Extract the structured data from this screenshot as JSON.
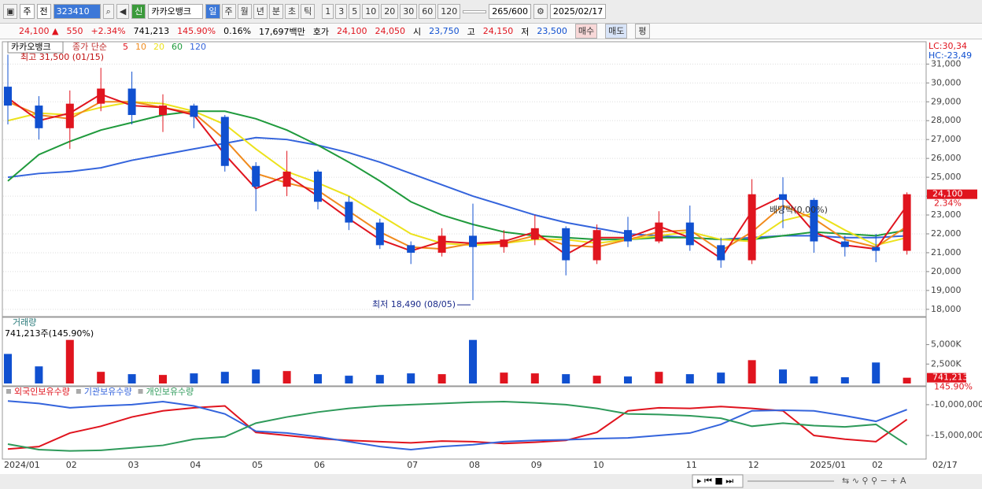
{
  "toolbar": {
    "market": "주",
    "type": "전",
    "code": "323410",
    "name": "카카오뱅크",
    "periods": [
      "일",
      "주",
      "월",
      "년",
      "분",
      "초",
      "틱"
    ],
    "intervals": [
      "1",
      "3",
      "5",
      "10",
      "20",
      "30",
      "60",
      "120"
    ],
    "count": "265",
    "max": "/600",
    "date": "2025/02/17"
  },
  "infobar": {
    "price": "24,100 ▲",
    "change": "550",
    "change_pct": "+2.34%",
    "volume": "741,213",
    "volume_pct": "145.90%",
    "turnover": "0.16%",
    "amount": "17,697백만",
    "quote_label": "호가",
    "ask": "24,100",
    "bid": "24,050",
    "open_label": "시",
    "open": "23,750",
    "high_label": "고",
    "high": "24,150",
    "low_label": "저",
    "low": "23,500",
    "buy": "매수",
    "sell": "매도",
    "avg": "평"
  },
  "chart_data": [
    {
      "type": "candlestick",
      "title": "카카오뱅크",
      "legend_label": "종가 단순",
      "categories": [
        "2024/01",
        null,
        "02",
        null,
        "03",
        null,
        "04",
        null,
        "05",
        null,
        "06",
        null,
        null,
        "07",
        null,
        "08",
        null,
        "09",
        null,
        "10",
        null,
        null,
        "11",
        null,
        "12",
        null,
        "2025/01",
        null,
        "02",
        null
      ],
      "end_label": "02/17",
      "open": [
        29800,
        28800,
        27600,
        28900,
        29700,
        28300,
        28800,
        28200,
        25600,
        24500,
        25300,
        23700,
        22600,
        21400,
        21000,
        21900,
        21300,
        21700,
        22300,
        20600,
        22200,
        21600,
        22600,
        21400,
        20600,
        24100,
        23800,
        21600,
        21300,
        21100
      ],
      "high": [
        31500,
        29300,
        29600,
        30800,
        30600,
        29400,
        28900,
        28300,
        25800,
        26400,
        25400,
        24000,
        22800,
        21600,
        22300,
        23600,
        22200,
        23000,
        22400,
        22500,
        22900,
        23200,
        23500,
        21800,
        24900,
        25000,
        23900,
        21900,
        22000,
        24200
      ],
      "low": [
        27800,
        27000,
        26500,
        28500,
        27800,
        27400,
        27600,
        25300,
        23200,
        24000,
        23300,
        22200,
        21200,
        20400,
        20800,
        18490,
        21000,
        21400,
        19800,
        20400,
        21300,
        21500,
        21100,
        20200,
        20400,
        22300,
        21000,
        20800,
        20500,
        20900
      ],
      "close": [
        28800,
        27600,
        28900,
        29700,
        28300,
        28800,
        28200,
        25600,
        24500,
        25300,
        23700,
        22600,
        21400,
        21000,
        21900,
        21300,
        21700,
        22300,
        20600,
        22200,
        21600,
        22600,
        21400,
        20600,
        24100,
        23800,
        21600,
        21300,
        21100,
        24100
      ],
      "up_color": "#e0141e",
      "down_color": "#1050d0",
      "series": [
        {
          "name": "5",
          "color": "#e0141e",
          "values": [
            29200,
            28000,
            28400,
            29400,
            28800,
            28700,
            28300,
            26200,
            24400,
            25100,
            24000,
            22800,
            21700,
            21100,
            21600,
            21500,
            21600,
            22100,
            20900,
            21800,
            21800,
            22400,
            21800,
            20700,
            23200,
            24000,
            22100,
            21400,
            21200,
            23500
          ]
        },
        {
          "name": "10",
          "color": "#f08a1c",
          "values": [
            29000,
            28300,
            28100,
            29000,
            29000,
            28700,
            28400,
            27000,
            25200,
            24700,
            24300,
            23200,
            22100,
            21300,
            21200,
            21500,
            21500,
            21900,
            21400,
            21300,
            21700,
            22100,
            22200,
            21100,
            22100,
            23500,
            22800,
            21700,
            21300,
            22400
          ]
        },
        {
          "name": "20",
          "color": "#ece21c",
          "values": [
            28000,
            28400,
            28300,
            28700,
            29000,
            28900,
            28500,
            27800,
            26500,
            25300,
            24700,
            24000,
            23000,
            22000,
            21500,
            21400,
            21500,
            21700,
            21700,
            21500,
            21700,
            21900,
            22100,
            21700,
            21600,
            22700,
            23100,
            22200,
            21400,
            21800
          ]
        },
        {
          "name": "60",
          "color": "#1f9a3c",
          "values": [
            24800,
            26200,
            26900,
            27500,
            27900,
            28300,
            28500,
            28500,
            28100,
            27500,
            26700,
            25800,
            24800,
            23700,
            23000,
            22500,
            22100,
            21900,
            21800,
            21700,
            21700,
            21800,
            21800,
            21700,
            21700,
            21900,
            22100,
            22000,
            21900,
            22200
          ]
        },
        {
          "name": "120",
          "color": "#3464dc",
          "values": [
            25000,
            25200,
            25300,
            25500,
            25900,
            26200,
            26500,
            26800,
            27100,
            27000,
            26700,
            26300,
            25800,
            25200,
            24600,
            24000,
            23500,
            23000,
            22600,
            22300,
            22000,
            21900,
            21800,
            21700,
            21800,
            21900,
            21900,
            21800,
            21800,
            21900
          ]
        }
      ],
      "ylim": [
        17700,
        32100
      ],
      "yticks": [
        {
          "value": 18000,
          "label": "18,000"
        },
        {
          "value": 19000,
          "label": "19,000"
        },
        {
          "value": 20000,
          "label": "20,000"
        },
        {
          "value": 21000,
          "label": "21,000"
        },
        {
          "value": 22000,
          "label": "22,000"
        },
        {
          "value": 23000,
          "label": "23,000"
        },
        {
          "value": 24000,
          "label": "24,000"
        },
        {
          "value": 25000,
          "label": "25,000"
        },
        {
          "value": 26000,
          "label": "26,000"
        },
        {
          "value": 27000,
          "label": "27,000"
        },
        {
          "value": 28000,
          "label": "28,000"
        },
        {
          "value": 29000,
          "label": "29,000"
        },
        {
          "value": 30000,
          "label": "30,000"
        },
        {
          "value": 31000,
          "label": "31,000"
        }
      ],
      "grid": true,
      "high_annotation": "최고 31,500 (01/15)",
      "low_annotation": "최저 18,490 (08/05)",
      "dividend_annotation": "배당락(0.00%)",
      "last_price_label": "24,100",
      "last_change_label": "2.34%",
      "lc_label": "LC:30,34",
      "hc_label": "HC:-23,49"
    },
    {
      "type": "bar",
      "title": "거래량",
      "subtitle": "741,213주(145.90%)",
      "values": [
        3800000,
        2200000,
        5600000,
        1500000,
        1200000,
        1100000,
        1300000,
        1500000,
        1800000,
        1600000,
        1200000,
        1000000,
        1100000,
        1300000,
        1200000,
        5600000,
        1400000,
        1300000,
        1200000,
        1000000,
        900000,
        1500000,
        1200000,
        1400000,
        3000000,
        1800000,
        900000,
        800000,
        2700000,
        741213
      ],
      "ylim": [
        0,
        8200000
      ],
      "yticks": [
        {
          "value": 2500000,
          "label": "2,500K"
        },
        {
          "value": 5000000,
          "label": "5,000K"
        }
      ],
      "last_label": "741,213",
      "last_pct_label": "145.90%"
    },
    {
      "type": "line",
      "series": [
        {
          "name": "외국인보유수량",
          "color": "#e0141e",
          "values": [
            -17200000,
            -16800000,
            -14600000,
            -13500000,
            -12000000,
            -11000000,
            -10500000,
            -10200000,
            -14500000,
            -15000000,
            -15500000,
            -15800000,
            -16000000,
            -16200000,
            -15900000,
            -16000000,
            -16300000,
            -16100000,
            -15800000,
            -14500000,
            -11000000,
            -10500000,
            -10600000,
            -10300000,
            -10600000,
            -11000000,
            -15000000,
            -15600000,
            -16000000,
            -12400000
          ]
        },
        {
          "name": "기관보유수량",
          "color": "#3464dc",
          "values": [
            -9400000,
            -9800000,
            -10500000,
            -10200000,
            -10000000,
            -9500000,
            -10200000,
            -11500000,
            -14300000,
            -14600000,
            -15200000,
            -16000000,
            -16800000,
            -17300000,
            -16800000,
            -16500000,
            -16000000,
            -15800000,
            -15700000,
            -15500000,
            -15400000,
            -15000000,
            -14600000,
            -13200000,
            -11000000,
            -10900000,
            -11000000,
            -11800000,
            -12700000,
            -10800000
          ]
        },
        {
          "name": "개인보유수량",
          "color": "#2e9a5a",
          "values": [
            -16400000,
            -17300000,
            -17500000,
            -17400000,
            -17000000,
            -16600000,
            -15600000,
            -15200000,
            -13000000,
            -12000000,
            -11200000,
            -10600000,
            -10200000,
            -10000000,
            -9800000,
            -9600000,
            -9500000,
            -9700000,
            -10000000,
            -10600000,
            -11500000,
            -11600000,
            -11800000,
            -12200000,
            -13500000,
            -13000000,
            -13400000,
            -13600000,
            -13200000,
            -16500000
          ]
        }
      ],
      "ylim": [
        -18700000,
        -7200000
      ],
      "yticks": [
        {
          "value": -10000000,
          "label": "-10,000,000"
        },
        {
          "value": -15000000,
          "label": "-15,000,000"
        }
      ]
    }
  ]
}
